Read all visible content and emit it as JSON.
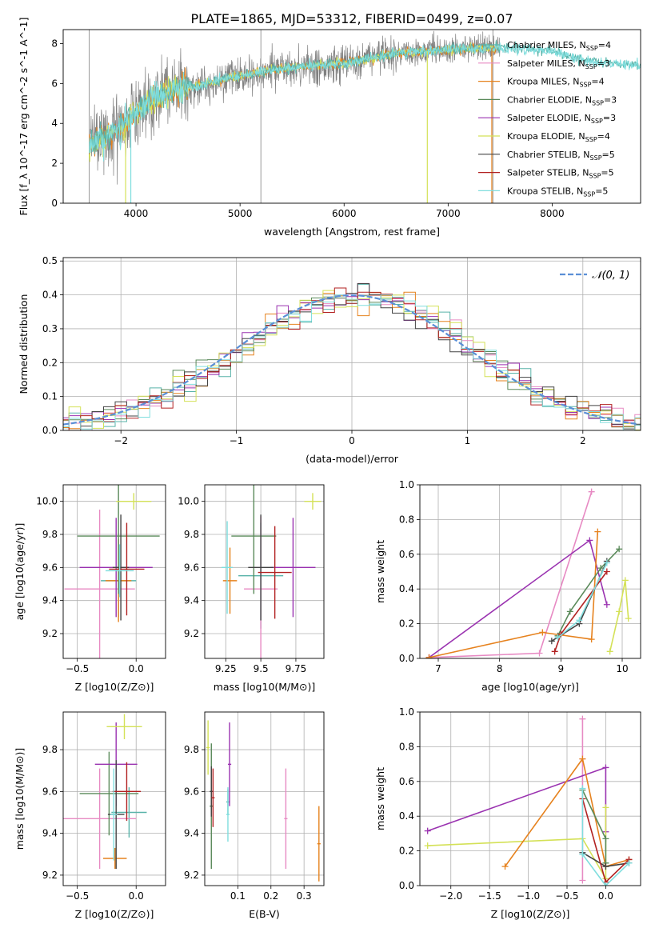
{
  "figure": {
    "title": "PLATE=1865, MJD=53312, FIBERID=0499, z=0.07"
  },
  "series_styles": [
    {
      "name": "Chabrier MILES, N_SSP=4",
      "color": "#59b3a9"
    },
    {
      "name": "Salpeter MILES, N_SSP=3",
      "color": "#e78ac3"
    },
    {
      "name": "Kroupa MILES, N_SSP=4",
      "color": "#e6821e"
    },
    {
      "name": "Chabrier ELODIE, N_SSP=3",
      "color": "#5a8a5a"
    },
    {
      "name": "Salpeter ELODIE, N_SSP=3",
      "color": "#9a32b0"
    },
    {
      "name": "Kroupa ELODIE, N_SSP=4",
      "color": "#d4e157"
    },
    {
      "name": "Chabrier STELIB, N_SSP=5",
      "color": "#444444"
    },
    {
      "name": "Salpeter STELIB, N_SSP=5",
      "color": "#b22222"
    },
    {
      "name": "Kroupa STELIB, N_SSP=5",
      "color": "#80dede"
    }
  ],
  "chart_data": [
    {
      "id": "spectrum",
      "type": "line",
      "title": "PLATE=1865, MJD=53312, FIBERID=0499, z=0.07",
      "xlabel": "wavelength [Angstrom, rest frame]",
      "ylabel": "Flux [f_λ 10^-17 erg cm^-2 s^-1 A^-1]",
      "xlim": [
        3300,
        8850
      ],
      "ylim": [
        0,
        8.7
      ],
      "xticks": [
        4000,
        5000,
        6000,
        7000,
        8000
      ],
      "yticks": [
        0,
        2,
        4,
        6,
        8
      ],
      "grid": false,
      "legend": "right",
      "data_color": "#808080",
      "model_color": "#7fd6d9",
      "envelope": [
        [
          3550,
          3.0
        ],
        [
          3700,
          3.2
        ],
        [
          3800,
          3.6
        ],
        [
          3900,
          4.0
        ],
        [
          4000,
          4.6
        ],
        [
          4100,
          5.0
        ],
        [
          4300,
          5.6
        ],
        [
          4500,
          5.8
        ],
        [
          5000,
          6.4
        ],
        [
          5500,
          6.8
        ],
        [
          6000,
          7.0
        ],
        [
          6500,
          7.5
        ],
        [
          7000,
          7.7
        ],
        [
          7500,
          7.8
        ],
        [
          7800,
          7.7
        ],
        [
          8000,
          7.6
        ],
        [
          8200,
          7.3
        ],
        [
          8400,
          7.1
        ],
        [
          8600,
          7.0
        ],
        [
          8850,
          6.9
        ]
      ],
      "data_end": 7500,
      "model_end": 8850
    },
    {
      "id": "residuals",
      "type": "bar",
      "xlabel": "(data-model)/error",
      "ylabel": "Normed distribution",
      "xlim": [
        -2.5,
        2.5
      ],
      "ylim": [
        0,
        0.51
      ],
      "xticks": [
        -2,
        -1,
        0,
        1,
        2
      ],
      "yticks": [
        0.0,
        0.1,
        0.2,
        0.3,
        0.4,
        0.5
      ],
      "grid": true,
      "legend": "top-right",
      "gaussian_label": "𝒩(0, 1)",
      "gaussian_color": "#5b8fd6",
      "bin_width": 0.1
    },
    {
      "id": "age-vs-Z",
      "type": "scatter",
      "xlabel": "Z [log10(Z/Z⊙)]",
      "ylabel": "age [log10(age/yr)]",
      "xlim": [
        -0.62,
        0.25
      ],
      "ylim": [
        9.05,
        10.1
      ],
      "xticks": [
        -0.5,
        0.0
      ],
      "xticklabels": [
        "−0.5",
        "0.0"
      ],
      "yticks": [
        9.2,
        9.4,
        9.6,
        9.8,
        10.0
      ],
      "grid": true,
      "crosses": [
        {
          "s": 0,
          "x": -0.15,
          "xe": 0.15,
          "y": 9.52,
          "ye": 0.22
        },
        {
          "s": 1,
          "x": -0.31,
          "xe": 0.3,
          "y": 9.47,
          "ye": 0.48
        },
        {
          "s": 2,
          "x": -0.15,
          "xe": 0.11,
          "y": 9.52,
          "ye": 0.25
        },
        {
          "s": 3,
          "x": -0.15,
          "xe": 0.35,
          "y": 9.79,
          "ye": 0.35
        },
        {
          "s": 4,
          "x": -0.17,
          "xe": 0.31,
          "y": 9.6,
          "ye": 0.3
        },
        {
          "s": 5,
          "x": -0.02,
          "xe": 0.15,
          "y": 10.0,
          "ye": 0.05
        },
        {
          "s": 6,
          "x": -0.13,
          "xe": 0.07,
          "y": 9.6,
          "ye": 0.32
        },
        {
          "s": 7,
          "x": -0.08,
          "xe": 0.15,
          "y": 9.59,
          "ye": 0.28
        },
        {
          "s": 8,
          "x": -0.14,
          "xe": 0.12,
          "y": 9.58,
          "ye": 0.16
        }
      ]
    },
    {
      "id": "age-vs-mass",
      "type": "scatter",
      "xlabel": "mass [log10(M/M⊙)]",
      "ylabel": "",
      "xlim": [
        9.1,
        9.95
      ],
      "ylim": [
        9.05,
        10.1
      ],
      "xticks": [
        9.25,
        9.5,
        9.75
      ],
      "yticks": [
        9.2,
        9.4,
        9.6,
        9.8,
        10.0
      ],
      "grid": true,
      "crosses": [
        {
          "s": 0,
          "x": 9.5,
          "xe": 0.16,
          "y": 9.55,
          "ye": 0.32
        },
        {
          "s": 1,
          "x": 9.5,
          "xe": 0.12,
          "y": 9.47,
          "ye": 0.44
        },
        {
          "s": 2,
          "x": 9.28,
          "xe": 0.05,
          "y": 9.52,
          "ye": 0.2
        },
        {
          "s": 3,
          "x": 9.45,
          "xe": 0.16,
          "y": 9.79,
          "ye": 0.35
        },
        {
          "s": 4,
          "x": 9.73,
          "xe": 0.16,
          "y": 9.6,
          "ye": 0.3
        },
        {
          "s": 5,
          "x": 9.87,
          "xe": 0.06,
          "y": 10.0,
          "ye": 0.05
        },
        {
          "s": 6,
          "x": 9.5,
          "xe": 0.09,
          "y": 9.6,
          "ye": 0.32
        },
        {
          "s": 7,
          "x": 9.6,
          "xe": 0.12,
          "y": 9.57,
          "ye": 0.28
        },
        {
          "s": 8,
          "x": 9.26,
          "xe": 0.04,
          "y": 9.6,
          "ye": 0.28
        }
      ]
    },
    {
      "id": "weight-vs-age",
      "type": "line",
      "xlabel": "age [log10(age/yr)]",
      "ylabel": "mass weight",
      "xlim": [
        6.7,
        10.3
      ],
      "ylim": [
        0,
        1.0
      ],
      "xticks": [
        7,
        8,
        9,
        10
      ],
      "yticks": [
        0.0,
        0.2,
        0.4,
        0.6,
        0.8,
        1.0
      ],
      "grid": true,
      "lines": [
        {
          "s": 1,
          "pts": [
            [
              6.85,
              0.005
            ],
            [
              8.65,
              0.03
            ],
            [
              9.5,
              0.96
            ]
          ]
        },
        {
          "s": 4,
          "pts": [
            [
              6.85,
              0.005
            ],
            [
              9.47,
              0.68
            ],
            [
              9.75,
              0.31
            ]
          ]
        },
        {
          "s": 2,
          "pts": [
            [
              6.85,
              0.005
            ],
            [
              8.7,
              0.15
            ],
            [
              9.5,
              0.11
            ],
            [
              9.6,
              0.73
            ]
          ]
        },
        {
          "s": 3,
          "pts": [
            [
              8.95,
              0.13
            ],
            [
              9.15,
              0.27
            ],
            [
              9.65,
              0.52
            ],
            [
              9.95,
              0.63
            ]
          ]
        },
        {
          "s": 5,
          "pts": [
            [
              9.8,
              0.04
            ],
            [
              9.95,
              0.27
            ],
            [
              10.05,
              0.45
            ],
            [
              10.1,
              0.23
            ]
          ]
        },
        {
          "s": 6,
          "pts": [
            [
              8.85,
              0.1
            ],
            [
              9.3,
              0.2
            ],
            [
              9.75,
              0.56
            ]
          ]
        },
        {
          "s": 7,
          "pts": [
            [
              8.9,
              0.04
            ],
            [
              9.0,
              0.14
            ],
            [
              9.75,
              0.5
            ]
          ]
        },
        {
          "s": 8,
          "pts": [
            [
              8.95,
              0.12
            ],
            [
              9.3,
              0.22
            ],
            [
              9.75,
              0.55
            ]
          ]
        }
      ]
    },
    {
      "id": "mass-vs-Z",
      "type": "scatter",
      "xlabel": "Z [log10(Z/Z⊙)]",
      "ylabel": "mass [log10(M/M⊙)]",
      "xlim": [
        -0.62,
        0.25
      ],
      "ylim": [
        9.15,
        9.98
      ],
      "xticks": [
        -0.5,
        0.0
      ],
      "xticklabels": [
        "−0.5",
        "0.0"
      ],
      "yticks": [
        9.2,
        9.4,
        9.6,
        9.8
      ],
      "grid": true,
      "crosses": [
        {
          "s": 0,
          "x": -0.06,
          "xe": 0.15,
          "y": 9.5,
          "ye": 0.12
        },
        {
          "s": 1,
          "x": -0.31,
          "xe": 0.31,
          "y": 9.47,
          "ye": 0.24
        },
        {
          "s": 2,
          "x": -0.18,
          "xe": 0.1,
          "y": 9.28,
          "ye": 0.05
        },
        {
          "s": 3,
          "x": -0.23,
          "xe": 0.25,
          "y": 9.59,
          "ye": 0.2
        },
        {
          "s": 4,
          "x": -0.17,
          "xe": 0.18,
          "y": 9.73,
          "ye": 0.2
        },
        {
          "s": 5,
          "x": -0.1,
          "xe": 0.15,
          "y": 9.91,
          "ye": 0.06
        },
        {
          "s": 6,
          "x": -0.17,
          "xe": 0.07,
          "y": 9.49,
          "ye": 0.26
        },
        {
          "s": 7,
          "x": -0.08,
          "xe": 0.12,
          "y": 9.6,
          "ye": 0.14
        },
        {
          "s": 8,
          "x": -0.19,
          "xe": 0.03,
          "y": 9.49,
          "ye": 0.22
        }
      ]
    },
    {
      "id": "mass-vs-ebv",
      "type": "scatter",
      "xlabel": "E(B-V)",
      "ylabel": "",
      "xlim": [
        0.0,
        0.36
      ],
      "ylim": [
        9.15,
        9.98
      ],
      "xticks": [
        0.1,
        0.2,
        0.3
      ],
      "yticks": [
        9.2,
        9.4,
        9.6,
        9.8
      ],
      "grid": true,
      "crosses": [
        {
          "s": 0,
          "x": 0.07,
          "xe": 0.005,
          "y": 9.55,
          "ye": 0.06
        },
        {
          "s": 1,
          "x": 0.245,
          "xe": 0.005,
          "y": 9.47,
          "ye": 0.24
        },
        {
          "s": 2,
          "x": 0.345,
          "xe": 0.005,
          "y": 9.35,
          "ye": 0.18
        },
        {
          "s": 3,
          "x": 0.02,
          "xe": 0.005,
          "y": 9.53,
          "ye": 0.3
        },
        {
          "s": 4,
          "x": 0.075,
          "xe": 0.005,
          "y": 9.73,
          "ye": 0.2
        },
        {
          "s": 5,
          "x": 0.01,
          "xe": 0.005,
          "y": 9.81,
          "ye": 0.13
        },
        {
          "s": 6,
          "x": 0.02,
          "xe": 0.005,
          "y": 9.6,
          "ye": 0.12
        },
        {
          "s": 7,
          "x": 0.025,
          "xe": 0.005,
          "y": 9.57,
          "ye": 0.14
        },
        {
          "s": 8,
          "x": 0.07,
          "xe": 0.005,
          "y": 9.49,
          "ye": 0.13
        }
      ]
    },
    {
      "id": "weight-vs-Z",
      "type": "line",
      "xlabel": "Z [log10(Z/Z⊙)]",
      "ylabel": "mass weight",
      "xlim": [
        -2.4,
        0.45
      ],
      "ylim": [
        0,
        1.0
      ],
      "xticks": [
        -2.0,
        -1.5,
        -1.0,
        -0.5,
        0.0
      ],
      "xticklabels": [
        "−2.0",
        "−1.5",
        "−1.0",
        "−0.5",
        "0.0"
      ],
      "yticks": [
        0.0,
        0.2,
        0.4,
        0.6,
        0.8,
        1.0
      ],
      "grid": true,
      "lines": [
        {
          "s": 1,
          "pts": [
            [
              -0.3,
              0.96
            ],
            [
              -0.3,
              0.73
            ],
            [
              -0.3,
              0.03
            ]
          ]
        },
        {
          "s": 4,
          "pts": [
            [
              -2.3,
              0.315
            ],
            [
              0.0,
              0.68
            ],
            [
              0.0,
              0.31
            ]
          ]
        },
        {
          "s": 5,
          "pts": [
            [
              -2.3,
              0.23
            ],
            [
              -0.3,
              0.27
            ],
            [
              0.0,
              0.04
            ],
            [
              0.0,
              0.45
            ]
          ]
        },
        {
          "s": 2,
          "pts": [
            [
              -1.3,
              0.11
            ],
            [
              -0.3,
              0.73
            ],
            [
              0.0,
              0.11
            ],
            [
              0.3,
              0.15
            ]
          ]
        },
        {
          "s": 3,
          "pts": [
            [
              -0.3,
              0.55
            ],
            [
              0.0,
              0.27
            ],
            [
              0.0,
              0.13
            ]
          ]
        },
        {
          "s": 6,
          "pts": [
            [
              -0.3,
              0.19
            ],
            [
              0.0,
              0.11
            ],
            [
              0.3,
              0.13
            ]
          ]
        },
        {
          "s": 7,
          "pts": [
            [
              -0.3,
              0.5
            ],
            [
              0.0,
              0.02
            ],
            [
              0.3,
              0.15
            ]
          ]
        },
        {
          "s": 8,
          "pts": [
            [
              -0.3,
              0.56
            ],
            [
              -0.3,
              0.18
            ],
            [
              0.0,
              0.0
            ],
            [
              0.3,
              0.13
            ]
          ]
        }
      ]
    }
  ]
}
